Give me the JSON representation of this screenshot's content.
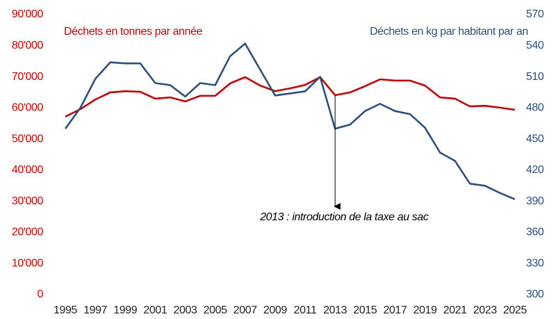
{
  "chart_data": {
    "type": "line",
    "x": [
      1995,
      1996,
      1997,
      1998,
      1999,
      2000,
      2001,
      2002,
      2003,
      2004,
      2005,
      2006,
      2007,
      2008,
      2009,
      2010,
      2011,
      2012,
      2013,
      2014,
      2015,
      2016,
      2017,
      2018,
      2019,
      2020,
      2021,
      2022,
      2023,
      2024,
      2025
    ],
    "series": [
      {
        "name": "Déchets en tonnes par année",
        "color": "#c00000",
        "values": [
          57200,
          59600,
          62700,
          65000,
          65400,
          65200,
          63000,
          63400,
          62100,
          63900,
          63900,
          67900,
          69900,
          67200,
          65400,
          66300,
          67400,
          69900,
          64100,
          65000,
          67000,
          69200,
          68800,
          68800,
          67200,
          63400,
          63000,
          60500,
          60700,
          60100,
          59400
        ]
      },
      {
        "name": "Déchets en kg par habitant par an",
        "color": "#2b4f7e",
        "axis": "y2",
        "values": [
          460,
          480,
          508,
          524,
          523,
          523,
          504,
          502,
          491,
          504,
          502,
          530,
          542,
          517,
          492,
          494,
          496,
          510,
          460,
          464,
          477,
          484,
          477,
          474,
          461,
          437,
          429,
          407,
          405,
          398,
          392
        ]
      }
    ],
    "xlim": [
      1995,
      2025
    ],
    "xticks": [
      1995,
      1997,
      1999,
      2001,
      2003,
      2005,
      2007,
      2009,
      2011,
      2013,
      2015,
      2017,
      2019,
      2021,
      2023,
      2025
    ],
    "ylim": [
      0,
      90000
    ],
    "yticks": [
      0,
      {
        "value": 10000,
        "label": "10'000"
      },
      {
        "value": 20000,
        "label": "20'000"
      },
      {
        "value": 30000,
        "label": "30'000"
      },
      {
        "value": 40000,
        "label": "40'000"
      },
      {
        "value": 50000,
        "label": "50'000"
      },
      {
        "value": 60000,
        "label": "60'000"
      },
      {
        "value": 70000,
        "label": "70'000"
      },
      {
        "value": 80000,
        "label": "80'000"
      },
      {
        "value": 90000,
        "label": "90'000"
      }
    ],
    "y2lim": [
      300,
      570
    ],
    "y2ticks": [
      300,
      330,
      360,
      390,
      420,
      450,
      480,
      510,
      540,
      570
    ],
    "grid": false,
    "annotation": {
      "text": "2013 : introduction de la taxe au sac",
      "x": 2013
    }
  }
}
